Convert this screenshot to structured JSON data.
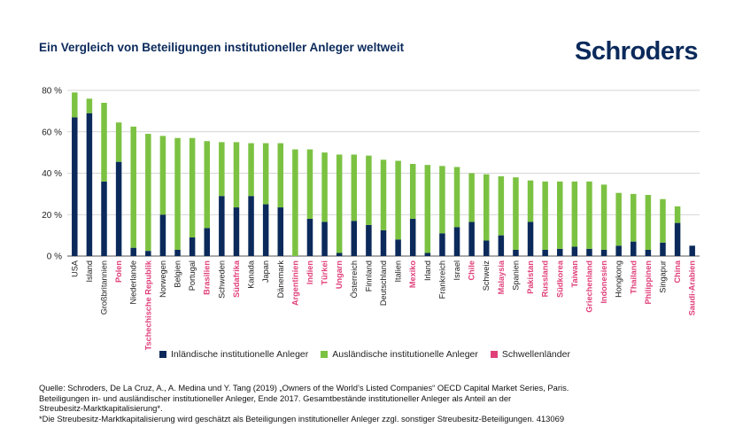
{
  "title": "Ein Vergleich von Beteiligungen institutioneller Anleger weltweit",
  "logo": "Schroders",
  "colors": {
    "domestic": "#0b2a5b",
    "foreign": "#7cc242",
    "emerging": "#e0407a",
    "grid": "#c8c8c8",
    "text": "#222222"
  },
  "chart_data": {
    "type": "bar",
    "stacked": true,
    "title": "Ein Vergleich von Beteiligungen institutioneller Anleger weltweit",
    "xlabel": "",
    "ylabel": "",
    "ylim": [
      0,
      80
    ],
    "yticks": [
      0,
      20,
      40,
      60,
      80
    ],
    "ytick_labels": [
      "0 %",
      "20 %",
      "40 %",
      "60 %",
      "80 %"
    ],
    "grid": true,
    "legend_position": "bottom",
    "categories": [
      "USA",
      "Island",
      "Großbritannien",
      "Polen",
      "Niederlande",
      "Tschechische Republik",
      "Norwegen",
      "Belgien",
      "Portugal",
      "Brasilien",
      "Schweden",
      "Südafrika",
      "Kanada",
      "Japan",
      "Dänemark",
      "Argentinien",
      "Indien",
      "Türkei",
      "Ungarn",
      "Österreich",
      "Finnland",
      "Deutschland",
      "Italien",
      "Mexiko",
      "Irland",
      "Frankreich",
      "Israel",
      "Chile",
      "Schweiz",
      "Malaysia",
      "Spanien",
      "Pakistan",
      "Russland",
      "Südkorea",
      "Taiwan",
      "Griechenland",
      "Indonesien",
      "Hongkong",
      "Thailand",
      "Philippinen",
      "Singapur",
      "China",
      "Saudi-Arabien"
    ],
    "emerging": [
      false,
      false,
      false,
      true,
      false,
      true,
      false,
      false,
      false,
      true,
      false,
      true,
      false,
      false,
      false,
      true,
      true,
      true,
      true,
      false,
      false,
      false,
      false,
      true,
      false,
      false,
      false,
      true,
      false,
      true,
      false,
      true,
      true,
      true,
      true,
      true,
      true,
      false,
      true,
      true,
      false,
      true,
      true
    ],
    "series": [
      {
        "name": "Inländische institutionelle Anleger",
        "values": [
          67,
          69,
          36,
          45.5,
          4,
          2.5,
          20,
          3,
          9,
          13.5,
          29,
          23.5,
          29,
          25,
          23.5,
          0,
          18,
          16.5,
          1.5,
          17,
          15,
          12.5,
          8,
          18,
          1.5,
          11,
          14,
          16.5,
          7.5,
          10,
          3,
          16.5,
          3,
          3.5,
          4.5,
          3.5,
          3,
          5,
          7,
          3,
          6.5,
          16,
          5
        ]
      },
      {
        "name": "Ausländische institutionelle Anleger",
        "values": [
          12,
          7,
          38,
          19,
          58.5,
          56.5,
          38,
          54,
          48,
          42,
          26,
          31.5,
          25.5,
          29.5,
          31,
          51.5,
          33.5,
          33.5,
          47.5,
          32,
          33.5,
          34,
          38,
          26.5,
          42.5,
          32.5,
          29,
          23.5,
          32,
          28.5,
          35,
          20,
          33,
          32.5,
          31.5,
          32.5,
          31.5,
          25.5,
          23,
          26.5,
          21,
          8,
          0
        ]
      }
    ],
    "legend": [
      "Inländische institutionelle Anleger",
      "Ausländische institutionelle Anleger",
      "Schwellenländer"
    ]
  },
  "source_lines": [
    "Quelle: Schroders, De La Cruz, A., A. Medina und Y. Tang (2019) „Owners of the World’s Listed Companies“ OECD Capital Market Series, Paris.",
    "Beteiligungen in- und ausländischer institutioneller Anleger, Ende 2017. Gesamtbestände institutioneller Anleger als Anteil an der",
    "Streubesitz-Marktkapitalisierung*.",
    "*Die Streubesitz-Marktkapitalisierung wird geschätzt als Beteiligungen institutioneller Anleger zzgl. sonstiger Streubesitz-Beteiligungen. 413069"
  ]
}
